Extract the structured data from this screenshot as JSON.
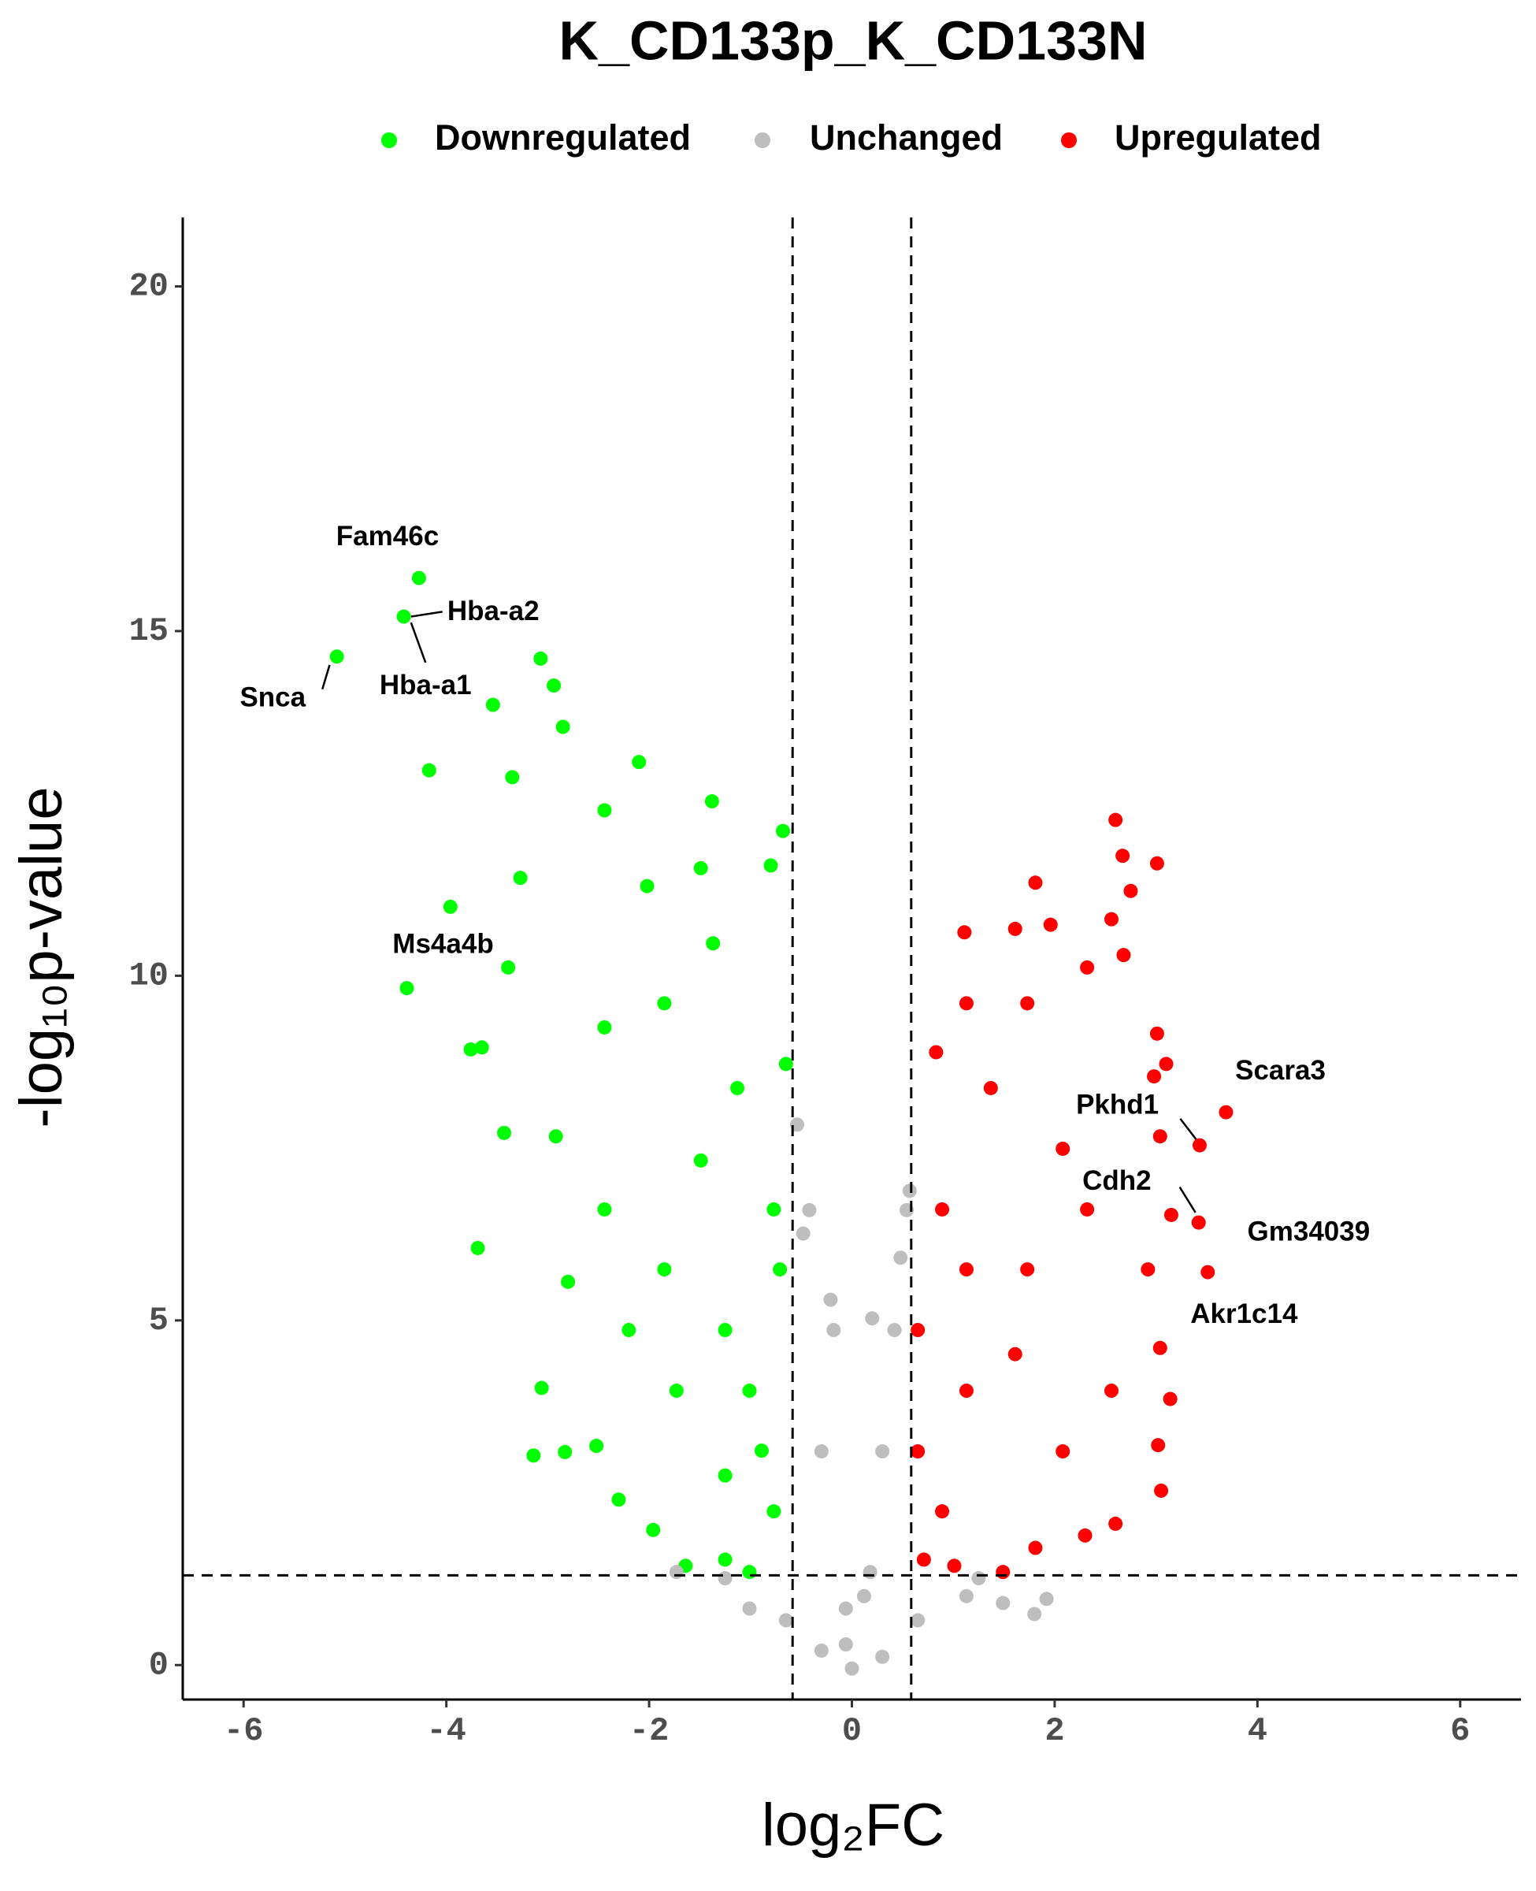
{
  "chart_data": {
    "type": "scatter",
    "title": "K_CD133p_K_CD133N",
    "x_label": "log₂FC",
    "y_label": "-log₁₀p-value",
    "xlim": [
      -6.6,
      6.6
    ],
    "ylim": [
      -0.5,
      21
    ],
    "xticks": [
      -6,
      -4,
      -2,
      0,
      2,
      4,
      6
    ],
    "yticks": [
      0,
      5,
      10,
      15,
      20
    ],
    "vlines": [
      -0.585,
      0.585
    ],
    "hline": 1.301,
    "grid": false,
    "legend": "top",
    "series": [
      {
        "name": "Downregulated",
        "color": "#00ff00",
        "x": [
          -4.27,
          -4.42,
          -5.08,
          -4.39,
          -3.96,
          -4.17,
          -3.54,
          -3.07,
          -2.94,
          -2.85,
          -3.35,
          -3.27,
          -2.1,
          -2.44,
          -1.38,
          -0.68,
          -0.8,
          -1.49,
          -2.02,
          -3.39,
          -3.76,
          -3.65,
          -3.69,
          -3.43,
          -3.14,
          -2.83,
          -3.06,
          -2.52,
          -2.3,
          -1.96,
          -1.64,
          -1.25,
          -1.01,
          -0.77,
          -0.65,
          -1.13,
          -1.85,
          -1.37,
          -2.44,
          -2.92,
          -2.8,
          -2.2,
          -1.73,
          -1.25,
          -0.89,
          -0.71,
          -1.49,
          -1.01,
          -1.85,
          -2.44,
          -0.77,
          -1.25
        ],
        "y": [
          15.77,
          15.21,
          14.63,
          9.82,
          11.0,
          12.98,
          13.93,
          14.6,
          14.21,
          13.61,
          12.88,
          11.42,
          13.1,
          12.4,
          12.53,
          12.1,
          11.6,
          11.56,
          11.3,
          10.12,
          8.93,
          8.96,
          6.05,
          7.72,
          3.04,
          3.09,
          4.02,
          3.18,
          2.4,
          1.96,
          1.44,
          1.53,
          1.35,
          6.61,
          8.72,
          8.37,
          9.6,
          10.47,
          9.25,
          7.67,
          5.56,
          4.86,
          3.98,
          4.86,
          3.11,
          5.74,
          7.32,
          3.98,
          5.74,
          6.61,
          2.23,
          2.75
        ]
      },
      {
        "name": "Unchanged",
        "color": "#bebebe",
        "x": [
          0,
          -0.06,
          0.12,
          -0.3,
          -0.18,
          -0.42,
          -0.54,
          0.54,
          0.42,
          0.3,
          0.18,
          -0.65,
          0.65,
          -1.01,
          1.13,
          1.49,
          1.8,
          1.92,
          -1.25,
          -1.73,
          1.25,
          -0.21,
          0.2,
          0.48,
          -0.48,
          0.57,
          -0.06,
          0.3,
          -0.3
        ],
        "y": [
          -0.05,
          0.82,
          1.0,
          3.1,
          4.86,
          6.6,
          7.84,
          6.6,
          4.86,
          3.1,
          1.35,
          0.65,
          0.65,
          0.82,
          1.0,
          0.9,
          0.74,
          0.96,
          1.26,
          1.35,
          1.26,
          5.3,
          5.03,
          5.91,
          6.26,
          6.88,
          0.3,
          0.12,
          0.21
        ]
      },
      {
        "name": "Upregulated",
        "color": "#ff0000",
        "x": [
          3.69,
          3.43,
          3.15,
          3.42,
          3.51,
          2.6,
          2.67,
          3.01,
          2.75,
          1.81,
          2.56,
          1.61,
          1.11,
          1.96,
          2.68,
          3.01,
          2.98,
          3.1,
          3.04,
          0.83,
          1.13,
          1.73,
          2.32,
          0.89,
          3.04,
          3.14,
          3.05,
          3.02,
          2.6,
          2.3,
          1.81,
          1.49,
          1.01,
          0.71,
          0.65,
          0.65,
          1.13,
          1.73,
          2.32,
          2.08,
          1.37,
          2.92,
          2.56,
          2.08,
          1.13,
          0.89,
          1.61
        ],
        "y": [
          8.02,
          7.54,
          6.53,
          6.42,
          5.7,
          12.26,
          11.74,
          11.63,
          11.23,
          11.35,
          10.82,
          10.68,
          10.63,
          10.74,
          10.3,
          9.16,
          8.54,
          8.72,
          7.67,
          8.89,
          9.6,
          9.6,
          10.12,
          6.61,
          4.6,
          3.86,
          2.53,
          3.19,
          2.05,
          1.88,
          1.7,
          1.35,
          1.44,
          1.53,
          3.1,
          4.86,
          3.98,
          5.74,
          6.61,
          7.49,
          8.37,
          5.74,
          3.98,
          3.1,
          5.74,
          2.23,
          4.51
        ]
      }
    ],
    "annotations": [
      {
        "text": "Fam46c",
        "x": -4.27,
        "y": 15.77
      },
      {
        "text": "Hba-a2",
        "x": -4.42,
        "y": 15.21
      },
      {
        "text": "Hba-a1",
        "x": -4.42,
        "y": 15.21
      },
      {
        "text": "Snca",
        "x": -5.08,
        "y": 14.63
      },
      {
        "text": "Ms4a4b",
        "x": -4.39,
        "y": 9.82
      },
      {
        "text": "Scara3",
        "x": 3.69,
        "y": 8.02
      },
      {
        "text": "Pkhd1",
        "x": 3.43,
        "y": 7.54
      },
      {
        "text": "Cdh2",
        "x": 3.15,
        "y": 6.53
      },
      {
        "text": "Gm34039",
        "x": 3.42,
        "y": 6.42
      },
      {
        "text": "Akr1c14",
        "x": 3.51,
        "y": 5.7
      }
    ]
  }
}
